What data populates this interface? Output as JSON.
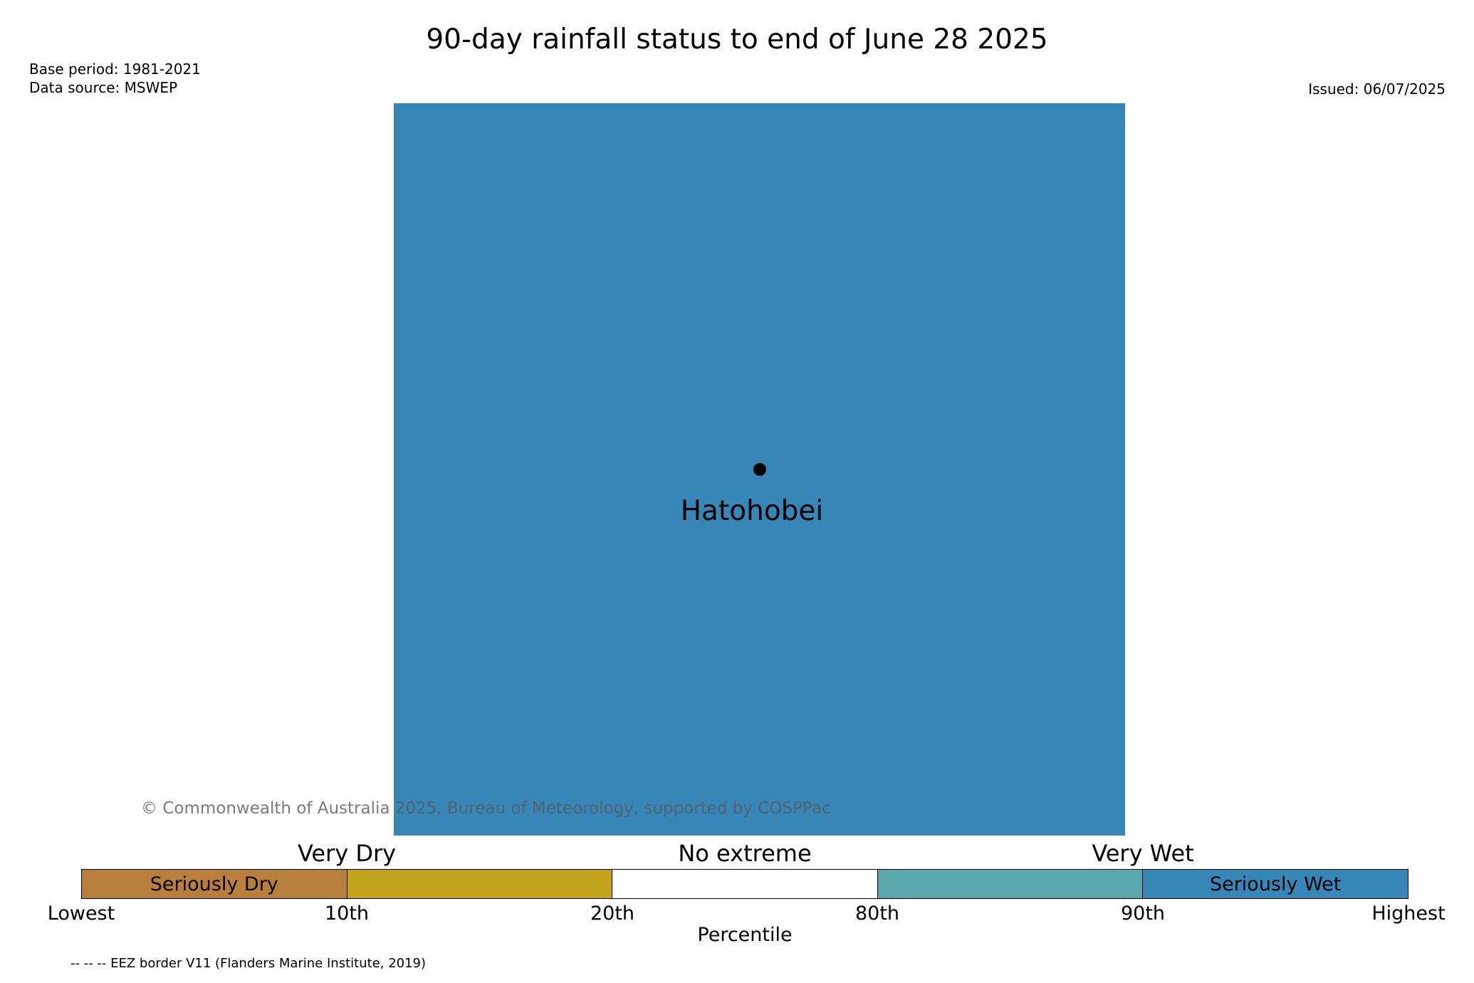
{
  "title": "90-day rainfall status to end of June 28 2025",
  "base_period": "Base period: 1981-2021",
  "data_source": "Data source: MSWEP",
  "issued": "Issued: 06/07/2025",
  "map": {
    "fill_color": "#3786b8",
    "location": {
      "name": "Hatohobei"
    }
  },
  "copyright": "© Commonwealth of Australia 2025, Bureau of Meteorology, supported by COSPPac",
  "legend": {
    "categories": [
      "Very Dry",
      "No extreme",
      "Very Wet"
    ],
    "segments": [
      {
        "label": "Seriously Dry",
        "color": "#b87f3c"
      },
      {
        "label": "",
        "color": "#c4a41b"
      },
      {
        "label": "",
        "color": "#ffffff"
      },
      {
        "label": "",
        "color": "#5aa8ae"
      },
      {
        "label": "Seriously Wet",
        "color": "#3786b8"
      }
    ],
    "ticks": [
      "Lowest",
      "10th",
      "20th",
      "80th",
      "90th",
      "Highest"
    ],
    "axis_label": "Percentile"
  },
  "eez_note": "-- -- -- EEZ border V11 (Flanders Marine Institute, 2019)"
}
